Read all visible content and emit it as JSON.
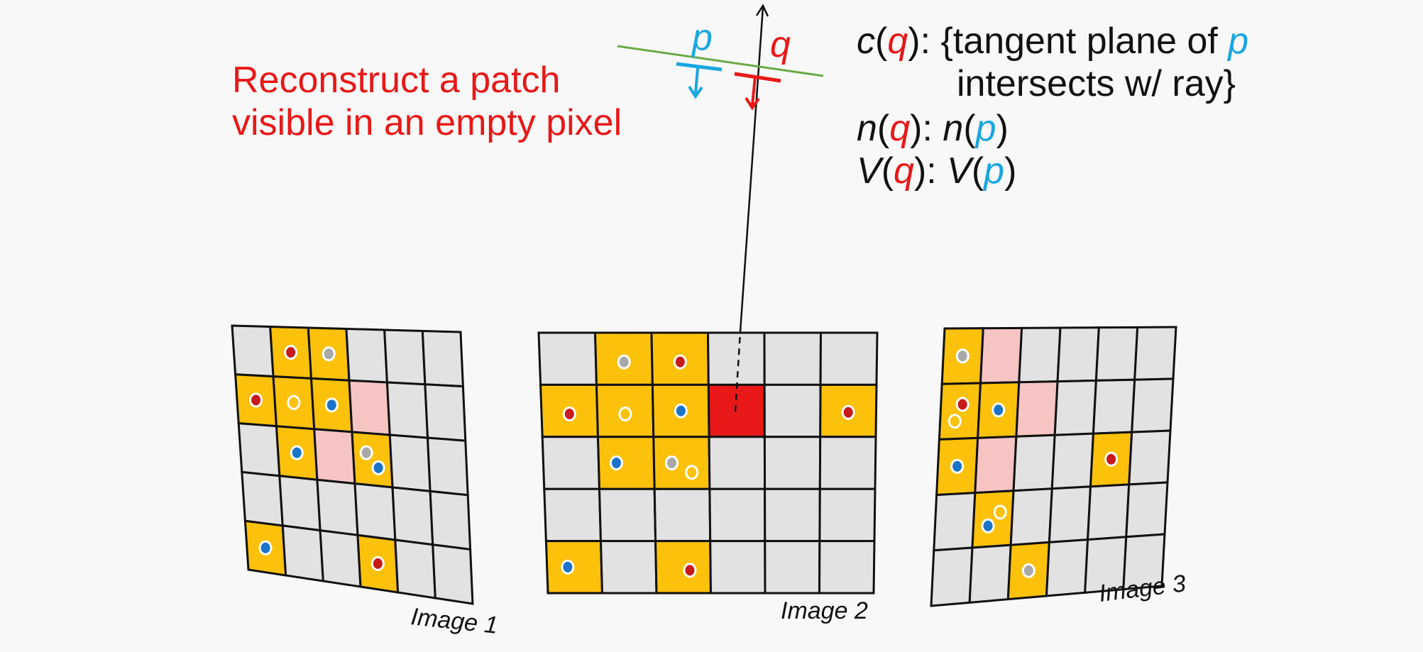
{
  "headline": {
    "line1": "Reconstruct a patch",
    "line2": "visible in an empty pixel"
  },
  "formulas": {
    "c_label": "c",
    "q": "q",
    "p": "p",
    "c_text_1": "): {tangent plane of ",
    "c_text_2": "intersects w/ ray}",
    "n_label": "n",
    "V_label": "V",
    "colon_sep": "): ",
    "open": "(",
    "close": ")"
  },
  "patches": {
    "p_label": "p",
    "q_label": "q"
  },
  "colors": {
    "red": "#e81818",
    "blue": "#1aa6e0",
    "yellow": "#fcc10a",
    "pink": "#f7c4c4",
    "gray_cell": "#e2e2e2",
    "green_plane": "#6aaa45",
    "dot_red": "#c71a1a",
    "dot_blue": "#1a74c9",
    "dot_gray": "#a8a8a8"
  },
  "images": [
    {
      "label": "Image 1",
      "rows": 5,
      "cols": 6,
      "cells": [
        "g",
        "y",
        "y",
        "g",
        "g",
        "g",
        "y",
        "y",
        "y",
        "p",
        "g",
        "g",
        "g",
        "y",
        "p",
        "y",
        "g",
        "g",
        "g",
        "g",
        "g",
        "g",
        "g",
        "g",
        "y",
        "g",
        "g",
        "y",
        "g",
        "g"
      ],
      "dots": [
        {
          "r": 0,
          "c": 1,
          "color": "red"
        },
        {
          "r": 0,
          "c": 2,
          "color": "gray"
        },
        {
          "r": 1,
          "c": 0,
          "color": "red"
        },
        {
          "r": 1,
          "c": 1,
          "color": "hollow"
        },
        {
          "r": 1,
          "c": 2,
          "color": "blue"
        },
        {
          "r": 2,
          "c": 1,
          "color": "blue"
        },
        {
          "r": 2,
          "c": 3,
          "color": "gray",
          "dx": -0.25,
          "dy": -0.2
        },
        {
          "r": 2,
          "c": 3,
          "color": "blue",
          "dx": 0.25,
          "dy": 0.25
        },
        {
          "r": 4,
          "c": 0,
          "color": "blue"
        },
        {
          "r": 4,
          "c": 3,
          "color": "red"
        }
      ]
    },
    {
      "label": "Image 2",
      "rows": 5,
      "cols": 6,
      "cells": [
        "g",
        "y",
        "y",
        "g",
        "g",
        "g",
        "y",
        "y",
        "y",
        "R",
        "g",
        "y",
        "g",
        "y",
        "y",
        "g",
        "g",
        "g",
        "g",
        "g",
        "g",
        "g",
        "g",
        "g",
        "y",
        "g",
        "y",
        "g",
        "g",
        "g"
      ],
      "dots": [
        {
          "r": 0,
          "c": 1,
          "color": "gray",
          "dy": 0.1
        },
        {
          "r": 0,
          "c": 2,
          "color": "red",
          "dy": 0.1
        },
        {
          "r": 1,
          "c": 0,
          "color": "red",
          "dy": 0.1
        },
        {
          "r": 1,
          "c": 1,
          "color": "hollow",
          "dy": 0.1
        },
        {
          "r": 1,
          "c": 2,
          "color": "blue"
        },
        {
          "r": 1,
          "c": 5,
          "color": "red",
          "dy": 0.05
        },
        {
          "r": 2,
          "c": 1,
          "color": "blue",
          "dx": -0.3
        },
        {
          "r": 2,
          "c": 2,
          "color": "gray",
          "dx": -0.3
        },
        {
          "r": 2,
          "c": 2,
          "color": "hollow",
          "dx": 0.3,
          "dy": 0.3
        },
        {
          "r": 4,
          "c": 0,
          "color": "blue",
          "dx": -0.2
        },
        {
          "r": 4,
          "c": 2,
          "color": "red",
          "dx": 0.2,
          "dy": 0.1
        }
      ]
    },
    {
      "label": "Image 3",
      "rows": 5,
      "cols": 6,
      "cells": [
        "y",
        "p",
        "g",
        "g",
        "g",
        "g",
        "y",
        "y",
        "p",
        "g",
        "g",
        "g",
        "y",
        "p",
        "g",
        "g",
        "y",
        "g",
        "g",
        "y",
        "g",
        "g",
        "g",
        "g",
        "g",
        "g",
        "y",
        "g",
        "g",
        "g"
      ],
      "dots": [
        {
          "r": 0,
          "c": 0,
          "color": "gray"
        },
        {
          "r": 1,
          "c": 0,
          "color": "red",
          "dx": 0.1,
          "dy": -0.2
        },
        {
          "r": 1,
          "c": 0,
          "color": "hollow",
          "dx": -0.2,
          "dy": 0.3
        },
        {
          "r": 1,
          "c": 1,
          "color": "blue"
        },
        {
          "r": 2,
          "c": 0,
          "color": "blue"
        },
        {
          "r": 2,
          "c": 4,
          "color": "red"
        },
        {
          "r": 3,
          "c": 1,
          "color": "blue",
          "dx": -0.2,
          "dy": 0.2
        },
        {
          "r": 3,
          "c": 1,
          "color": "hollow",
          "dx": 0.3,
          "dy": -0.2
        },
        {
          "r": 4,
          "c": 2,
          "color": "gray"
        }
      ]
    }
  ]
}
